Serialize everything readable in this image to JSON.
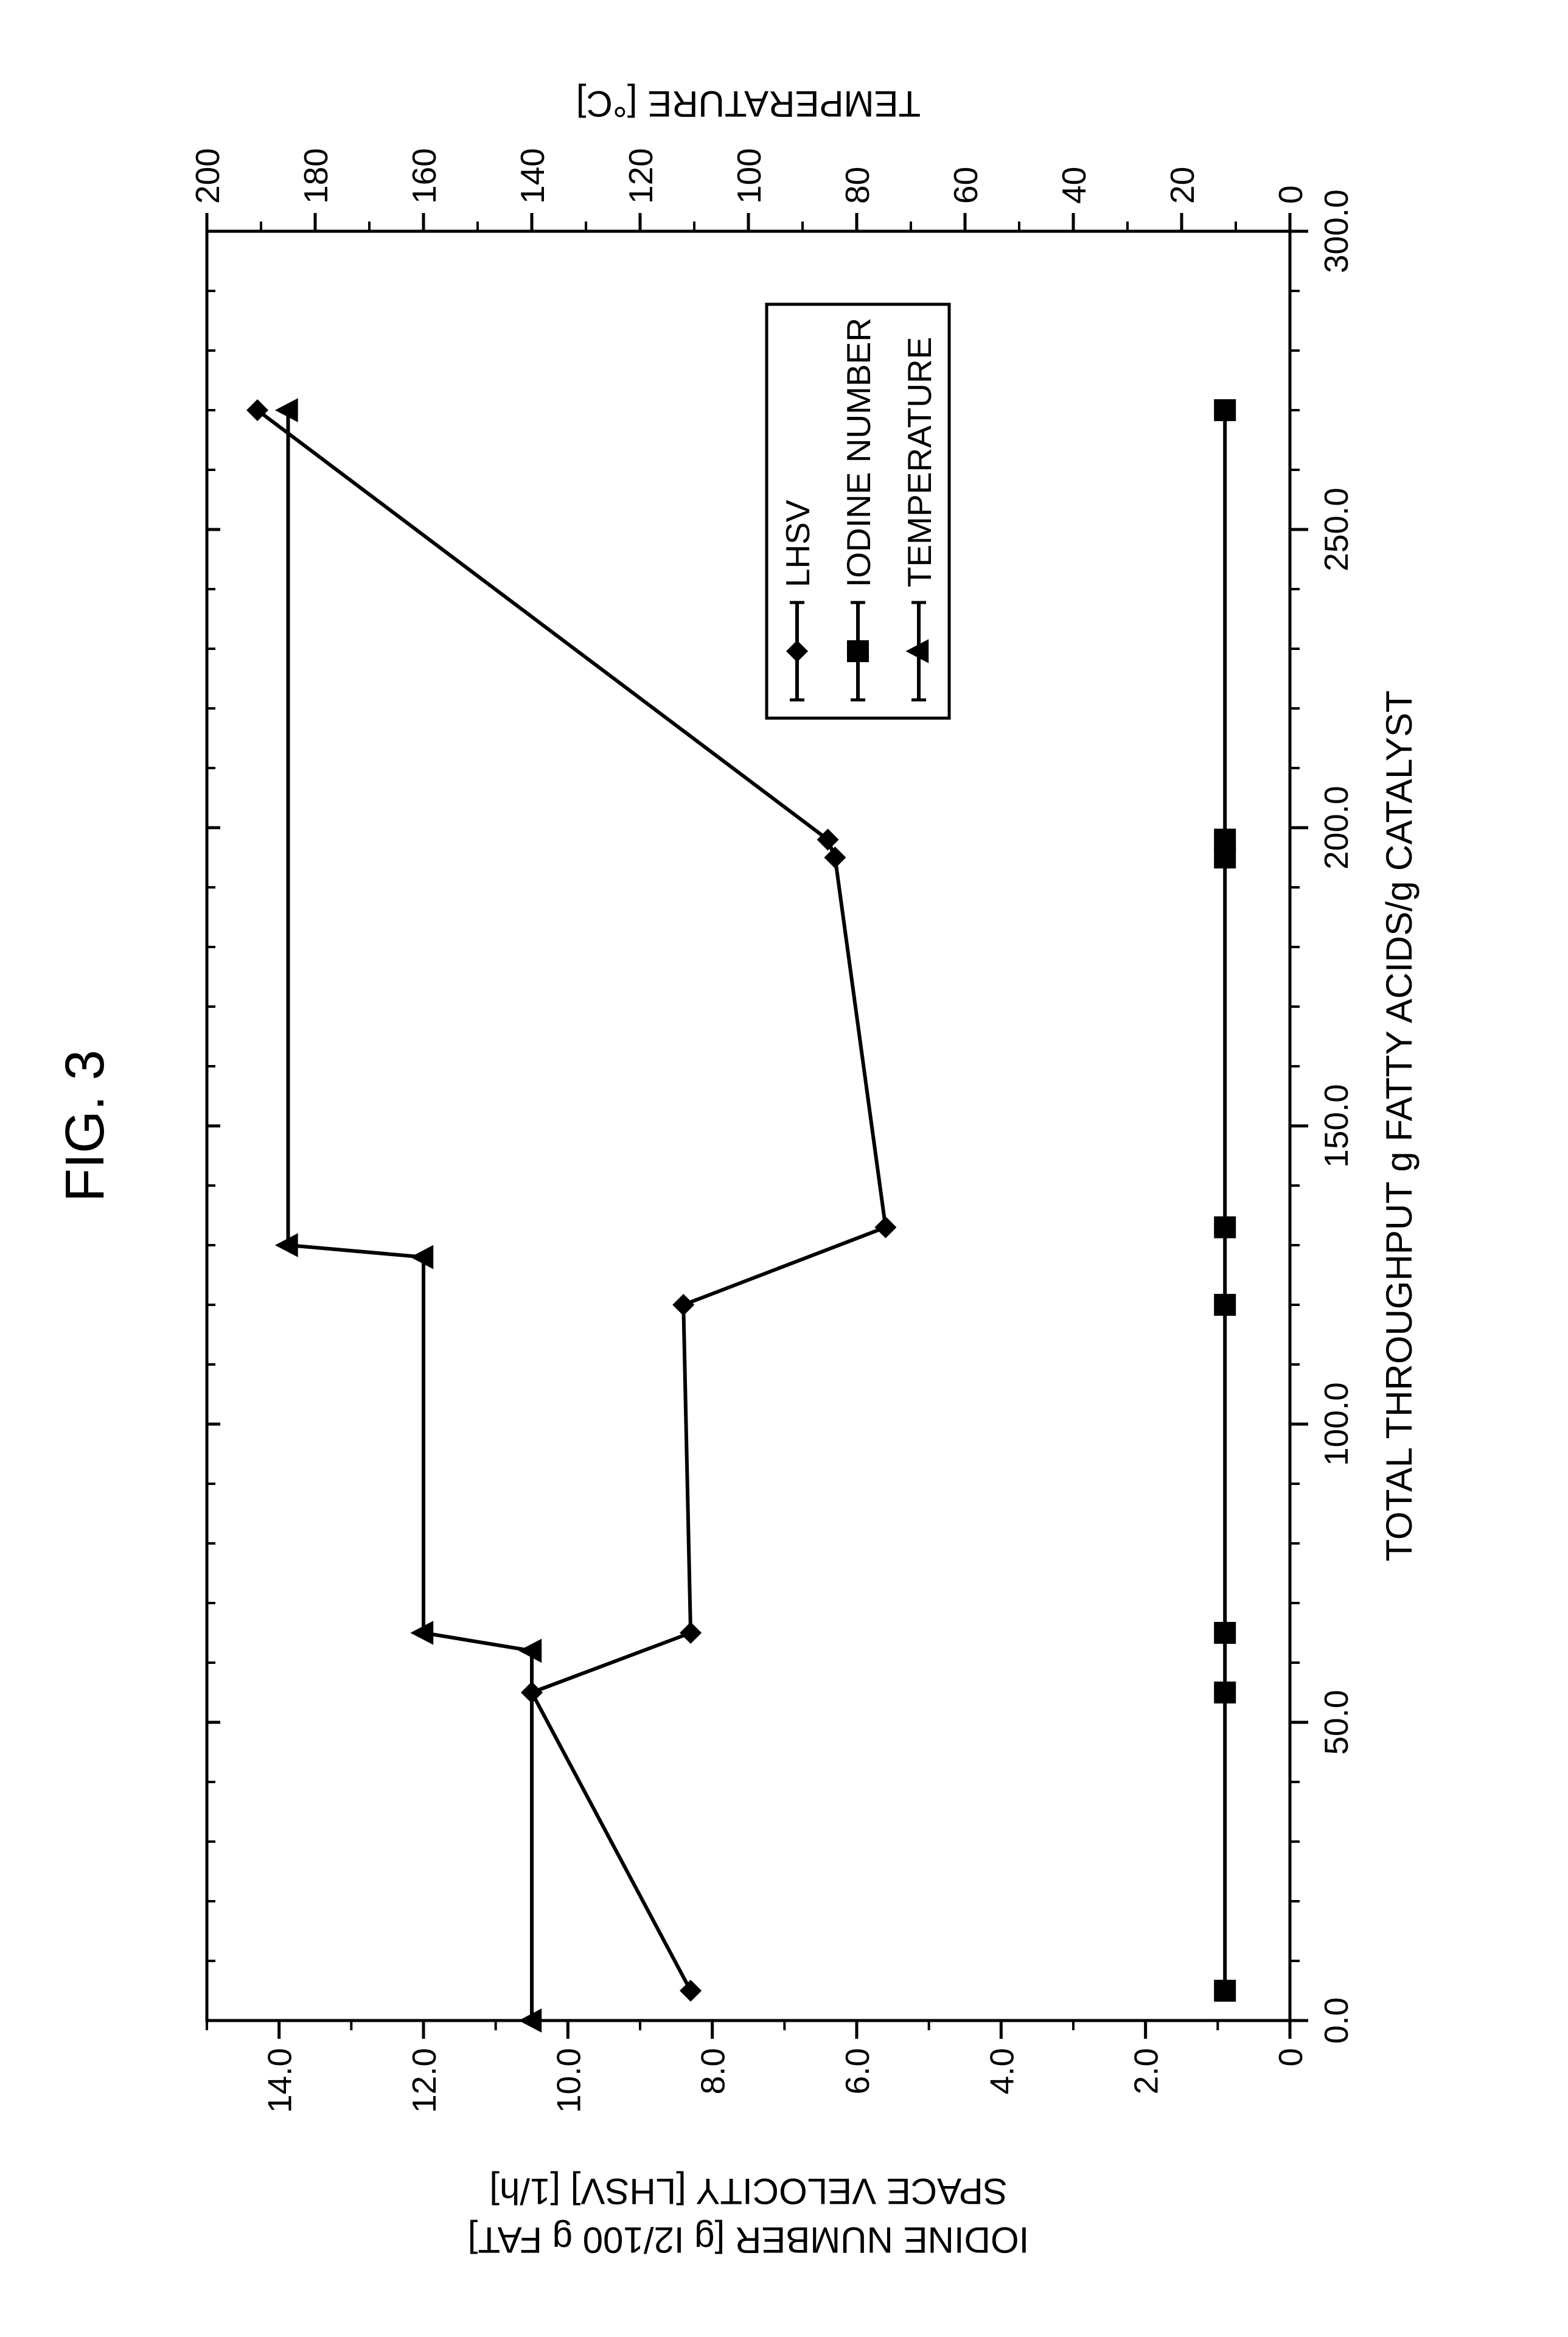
{
  "figure_label": "FIG. 3",
  "chart": {
    "type": "line",
    "background_color": "#ffffff",
    "axis_color": "#000000",
    "text_color": "#000000",
    "line_color": "#000000",
    "line_width": 6,
    "marker_size": 18,
    "font_family": "Arial",
    "title_fontsize": 90,
    "axis_label_fontsize": 60,
    "tick_fontsize": 55,
    "legend_fontsize": 55,
    "x_axis": {
      "label": "TOTAL THROUGHPUT g FATTY ACIDS/g CATALYST",
      "min": 0,
      "max": 300,
      "tick_step": 50,
      "tick_labels": [
        "0.0",
        "50.0",
        "100.0",
        "150.0",
        "200.0",
        "250.0",
        "300.0"
      ],
      "minor_tick_step": 10
    },
    "y_left": {
      "label_line1": "IODINE NUMBER [g I2/100 g FAT]",
      "label_line2": "SPACE VELOCITY [LHSV] [1/h]",
      "min": 0,
      "max": 15,
      "ticks": [
        0,
        2,
        4,
        6,
        8,
        10,
        12,
        14
      ],
      "tick_labels": [
        "0",
        "2.0",
        "4.0",
        "6.0",
        "8.0",
        "10.0",
        "12.0",
        "14.0"
      ]
    },
    "y_right": {
      "label": "TEMPERATURE [°C]",
      "min": 0,
      "max": 200,
      "tick_step": 20,
      "tick_labels": [
        "0",
        "20",
        "40",
        "60",
        "80",
        "100",
        "120",
        "140",
        "160",
        "180",
        "200"
      ]
    },
    "series": [
      {
        "name": "LHSV",
        "axis": "left",
        "marker": "diamond",
        "color": "#000000",
        "x": [
          5,
          55,
          65,
          120,
          133,
          195,
          198,
          270
        ],
        "y": [
          8.3,
          10.5,
          8.3,
          8.4,
          5.6,
          6.3,
          6.4,
          14.3
        ]
      },
      {
        "name": "IODINE NUMBER",
        "axis": "left",
        "marker": "square",
        "color": "#000000",
        "x": [
          5,
          55,
          65,
          120,
          133,
          195,
          198,
          270
        ],
        "y": [
          0.9,
          0.9,
          0.9,
          0.9,
          0.9,
          0.9,
          0.9,
          0.9
        ]
      },
      {
        "name": "TEMPERATURE",
        "axis": "right",
        "marker": "triangle",
        "color": "#000000",
        "x": [
          0,
          62,
          65,
          128,
          130,
          270
        ],
        "y": [
          140,
          140,
          160,
          160,
          185,
          185
        ]
      }
    ],
    "legend": {
      "position": "inside-right-middle",
      "border_color": "#000000",
      "background": "#ffffff",
      "items": [
        "LHSV",
        "IODINE NUMBER",
        "TEMPERATURE"
      ]
    }
  }
}
